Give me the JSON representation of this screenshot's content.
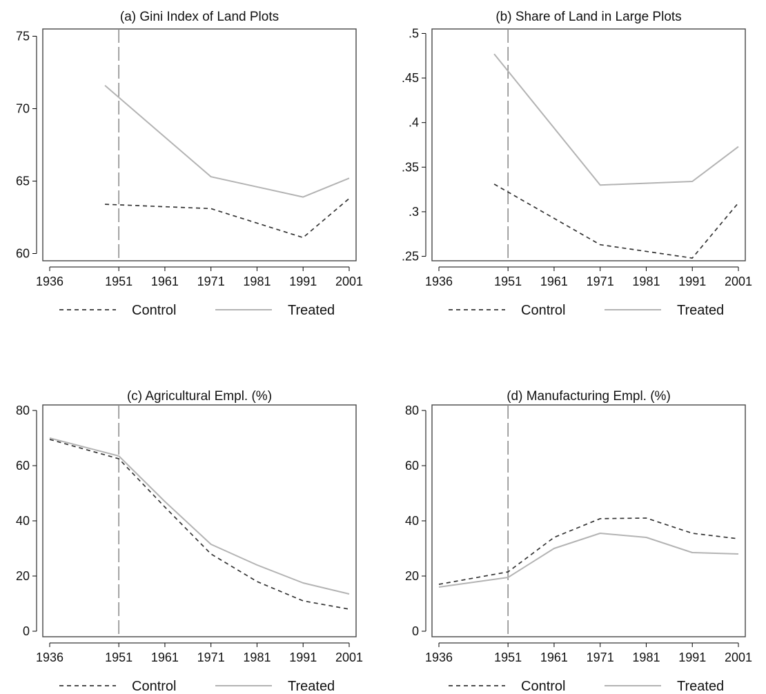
{
  "figure": {
    "series_styles": {
      "Control": {
        "color": "#333333",
        "dash": "6 5",
        "width": 1.7
      },
      "Treated": {
        "color": "#b3b3b3",
        "dash": "",
        "width": 2
      }
    },
    "reference_year": 1951
  },
  "chart_data": [
    {
      "id": "a",
      "type": "line",
      "title": "(a) Gini Index of Land Plots",
      "xlabel": "",
      "ylabel": "",
      "xlim": [
        1934.5,
        2002.5
      ],
      "ylim": [
        59.5,
        75.5
      ],
      "x_ticks": [
        1936,
        1951,
        1961,
        1971,
        1981,
        1991,
        2001
      ],
      "y_ticks": [
        {
          "value": 60,
          "label": "60"
        },
        {
          "value": 65,
          "label": "65"
        },
        {
          "value": 70,
          "label": "70"
        },
        {
          "value": 75,
          "label": "75"
        }
      ],
      "legend": {
        "position": "bottom",
        "entries": [
          "Control",
          "Treated"
        ]
      },
      "series": [
        {
          "name": "Control",
          "x": [
            1948,
            1971,
            1991,
            2001
          ],
          "values": [
            63.4,
            63.1,
            61.1,
            63.8
          ]
        },
        {
          "name": "Treated",
          "x": [
            1948,
            1971,
            1991,
            2001
          ],
          "values": [
            71.6,
            65.3,
            63.9,
            65.2
          ]
        }
      ]
    },
    {
      "id": "b",
      "type": "line",
      "title": "(b) Share of Land in Large Plots",
      "xlabel": "",
      "ylabel": "",
      "xlim": [
        1934.5,
        2002.5
      ],
      "ylim": [
        0.245,
        0.505
      ],
      "x_ticks": [
        1936,
        1951,
        1961,
        1971,
        1981,
        1991,
        2001
      ],
      "y_ticks": [
        {
          "value": 0.25,
          "label": ".25"
        },
        {
          "value": 0.3,
          "label": ".3"
        },
        {
          "value": 0.35,
          "label": ".35"
        },
        {
          "value": 0.4,
          "label": ".4"
        },
        {
          "value": 0.45,
          "label": ".45"
        },
        {
          "value": 0.5,
          "label": ".5"
        }
      ],
      "legend": {
        "position": "bottom",
        "entries": [
          "Control",
          "Treated"
        ]
      },
      "series": [
        {
          "name": "Control",
          "x": [
            1948,
            1971,
            1991,
            2001
          ],
          "values": [
            0.331,
            0.263,
            0.248,
            0.31
          ]
        },
        {
          "name": "Treated",
          "x": [
            1948,
            1971,
            1991,
            2001
          ],
          "values": [
            0.477,
            0.33,
            0.334,
            0.373
          ]
        }
      ]
    },
    {
      "id": "c",
      "type": "line",
      "title": "(c) Agricultural Empl. (%)",
      "xlabel": "",
      "ylabel": "",
      "xlim": [
        1934.5,
        2002.5
      ],
      "ylim": [
        -2,
        82
      ],
      "x_ticks": [
        1936,
        1951,
        1961,
        1971,
        1981,
        1991,
        2001
      ],
      "y_ticks": [
        {
          "value": 0,
          "label": "0"
        },
        {
          "value": 20,
          "label": "20"
        },
        {
          "value": 40,
          "label": "40"
        },
        {
          "value": 60,
          "label": "60"
        },
        {
          "value": 80,
          "label": "80"
        }
      ],
      "legend": {
        "position": "bottom",
        "entries": [
          "Control",
          "Treated"
        ]
      },
      "series": [
        {
          "name": "Control",
          "x": [
            1936,
            1951,
            1961,
            1971,
            1981,
            1991,
            2001
          ],
          "values": [
            69.5,
            62.5,
            45,
            28,
            18,
            11,
            8
          ]
        },
        {
          "name": "Treated",
          "x": [
            1936,
            1951,
            1961,
            1971,
            1981,
            1991,
            2001
          ],
          "values": [
            70,
            63.5,
            47,
            31.5,
            24,
            17.5,
            13.5
          ]
        }
      ]
    },
    {
      "id": "d",
      "type": "line",
      "title": "(d) Manufacturing Empl. (%)",
      "xlabel": "",
      "ylabel": "",
      "xlim": [
        1934.5,
        2002.5
      ],
      "ylim": [
        -2,
        82
      ],
      "x_ticks": [
        1936,
        1951,
        1961,
        1971,
        1981,
        1991,
        2001
      ],
      "y_ticks": [
        {
          "value": 0,
          "label": "0"
        },
        {
          "value": 20,
          "label": "20"
        },
        {
          "value": 40,
          "label": "40"
        },
        {
          "value": 60,
          "label": "60"
        },
        {
          "value": 80,
          "label": "80"
        }
      ],
      "legend": {
        "position": "bottom",
        "entries": [
          "Control",
          "Treated"
        ]
      },
      "series": [
        {
          "name": "Control",
          "x": [
            1936,
            1951,
            1961,
            1971,
            1981,
            1991,
            2001
          ],
          "values": [
            17,
            21.5,
            34,
            40.8,
            41,
            35.5,
            33.5
          ]
        },
        {
          "name": "Treated",
          "x": [
            1936,
            1951,
            1961,
            1971,
            1981,
            1991,
            2001
          ],
          "values": [
            16,
            19.5,
            30,
            35.5,
            34,
            28.5,
            28
          ]
        }
      ]
    }
  ]
}
